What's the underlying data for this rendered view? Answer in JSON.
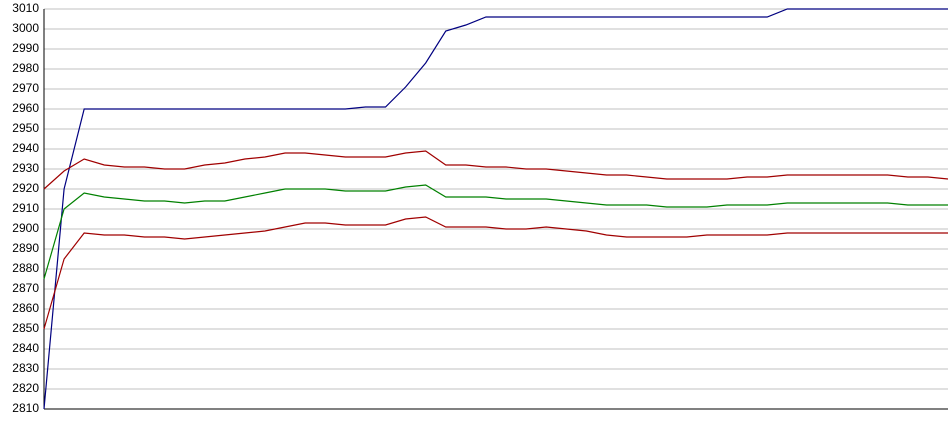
{
  "chart_data": {
    "type": "line",
    "categories": [
      null,
      null,
      null,
      null,
      null,
      null,
      null,
      null,
      null,
      null,
      null,
      null,
      null,
      null,
      null,
      null,
      null,
      null,
      null,
      null,
      null,
      null,
      null,
      null,
      null,
      null,
      null,
      null,
      null,
      null,
      null,
      null,
      null,
      null,
      null,
      null,
      null,
      null,
      null,
      null,
      null,
      null,
      null,
      null,
      null,
      null
    ],
    "series": [
      {
        "color": "#000080",
        "values": [
          2810,
          2920,
          2960,
          2960,
          2960,
          2960,
          2960,
          2960,
          2960,
          2960,
          2960,
          2960,
          2960,
          2960,
          2960,
          2960,
          2961,
          2961,
          2971,
          2983,
          2999,
          3002,
          3006,
          3006,
          3006,
          3006,
          3006,
          3006,
          3006,
          3006,
          3006,
          3006,
          3006,
          3006,
          3006,
          3006,
          3006,
          3010,
          3010,
          3010,
          3010,
          3010,
          3010,
          3010,
          3010,
          3010
        ]
      },
      {
        "color": "#a00000",
        "values": [
          2920,
          2929,
          2935,
          2932,
          2931,
          2931,
          2930,
          2930,
          2932,
          2933,
          2935,
          2936,
          2938,
          2938,
          2937,
          2936,
          2936,
          2936,
          2938,
          2939,
          2932,
          2932,
          2931,
          2931,
          2930,
          2930,
          2929,
          2928,
          2927,
          2927,
          2926,
          2925,
          2925,
          2925,
          2925,
          2926,
          2926,
          2927,
          2927,
          2927,
          2927,
          2927,
          2927,
          2926,
          2926,
          2925
        ]
      },
      {
        "color": "#008000",
        "values": [
          2875,
          2910,
          2918,
          2916,
          2915,
          2914,
          2914,
          2913,
          2914,
          2914,
          2916,
          2918,
          2920,
          2920,
          2920,
          2919,
          2919,
          2919,
          2921,
          2922,
          2916,
          2916,
          2916,
          2915,
          2915,
          2915,
          2914,
          2913,
          2912,
          2912,
          2912,
          2911,
          2911,
          2911,
          2912,
          2912,
          2912,
          2913,
          2913,
          2913,
          2913,
          2913,
          2913,
          2912,
          2912,
          2912
        ]
      },
      {
        "color": "#a00000",
        "values": [
          2850,
          2885,
          2898,
          2897,
          2897,
          2896,
          2896,
          2895,
          2896,
          2897,
          2898,
          2899,
          2901,
          2903,
          2903,
          2902,
          2902,
          2902,
          2905,
          2906,
          2901,
          2901,
          2901,
          2900,
          2900,
          2901,
          2900,
          2899,
          2897,
          2896,
          2896,
          2896,
          2896,
          2897,
          2897,
          2897,
          2897,
          2898,
          2898,
          2898,
          2898,
          2898,
          2898,
          2898,
          2898,
          2898
        ]
      }
    ],
    "ylim": [
      2810,
      3010
    ],
    "yticks": [
      2810,
      2820,
      2830,
      2840,
      2850,
      2860,
      2870,
      2880,
      2890,
      2900,
      2910,
      2920,
      2930,
      2940,
      2950,
      2960,
      2970,
      2980,
      2990,
      3000,
      3010
    ],
    "grid": true
  }
}
